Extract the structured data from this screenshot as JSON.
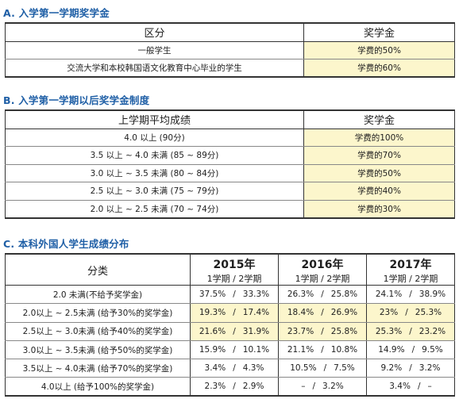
{
  "section_a": {
    "title": "A. 入学第一学期奖学金",
    "header": [
      "区分",
      "奖学金"
    ],
    "rows": [
      [
        "一般学生",
        "学费的50%"
      ],
      [
        "交流大学和本校韩国语文化教育中心毕业的学生",
        "学费的60%"
      ]
    ]
  },
  "section_b": {
    "title": "B. 入学第一学期以后奖学金制度",
    "header": [
      "上学期平均成绩",
      "奖学金"
    ],
    "rows": [
      [
        "4.0 以上 (90分)",
        "学费的100%"
      ],
      [
        "3.5 以上 ~ 4.0 未满 (85 ~ 89分)",
        "学费的70%"
      ],
      [
        "3.0 以上 ~ 3.5 未满 (80 ~ 84分)",
        "学费的50%"
      ],
      [
        "2.5 以上 ~ 3.0 未满 (75 ~ 79分)",
        "学费的40%"
      ],
      [
        "2.0 以上 ~ 2.5 未满 (70 ~ 74分)",
        "学费的30%"
      ]
    ]
  },
  "section_c": {
    "title": "C. 本科外国人学生成绩分布",
    "category_header": "分类",
    "years": [
      "2015年",
      "2016年",
      "2017年"
    ],
    "term_header": "1学期 / 2学期",
    "rows": [
      {
        "label": "2.0 未满(不给予奖学金)",
        "values": [
          [
            "37.5%",
            "33.3%"
          ],
          [
            "26.3%",
            "25.8%"
          ],
          [
            "24.1%",
            "38.9%"
          ]
        ]
      },
      {
        "label": "2.0以上 ~ 2.5未满 (给予30%的奖学金)",
        "values": [
          [
            "19.3%",
            "17.4%"
          ],
          [
            "18.4%",
            "26.9%"
          ],
          [
            "23%",
            "25.3%"
          ]
        ]
      },
      {
        "label": "2.5以上 ~ 3.0未满 (给予40%的奖学金)",
        "values": [
          [
            "21.6%",
            "31.9%"
          ],
          [
            "23.7%",
            "25.8%"
          ],
          [
            "25.3%",
            "23.2%"
          ]
        ]
      },
      {
        "label": "3.0以上 ~ 3.5未满 (给予50%的奖学金)",
        "values": [
          [
            "15.9%",
            "10.1%"
          ],
          [
            "21.1%",
            "10.8%"
          ],
          [
            "14.9%",
            "9.5%"
          ]
        ]
      },
      {
        "label": "3.5以上 ~ 4.0未满 (给予70%的奖学金)",
        "values": [
          [
            "3.4%",
            "4.3%"
          ],
          [
            "10.5%",
            "7.5%"
          ],
          [
            "9.2%",
            "3.2%"
          ]
        ]
      },
      {
        "label": "4.0以上 (给予100%的奖学金)",
        "values": [
          [
            "2.3%",
            "2.9%"
          ],
          [
            "–",
            "3.2%"
          ],
          [
            "3.4%",
            "–"
          ]
        ]
      }
    ],
    "highlight_rows": [
      1,
      2
    ]
  },
  "colors": {
    "title": "#1f5fa6",
    "highlight": "#fcf6cc",
    "border": "#333333"
  }
}
